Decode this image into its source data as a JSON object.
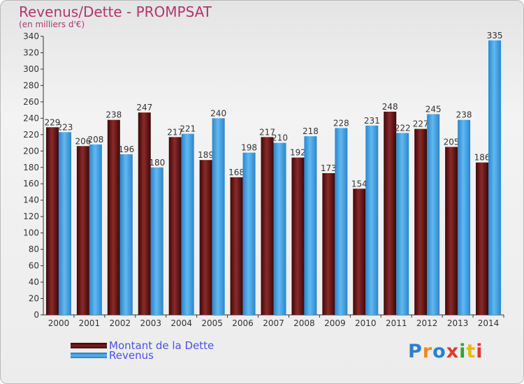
{
  "chart_data": {
    "type": "bar",
    "title": "Revenus/Dette - PROMPSAT",
    "subtitle": "(en milliers d'€)",
    "categories": [
      "2000",
      "2001",
      "2002",
      "2003",
      "2004",
      "2005",
      "2006",
      "2007",
      "2008",
      "2009",
      "2010",
      "2011",
      "2012",
      "2013",
      "2014"
    ],
    "series": [
      {
        "name": "Montant de la Dette",
        "color": "#6f1818",
        "values": [
          229,
          206,
          238,
          247,
          217,
          189,
          168,
          217,
          192,
          173,
          154,
          248,
          227,
          205,
          186
        ]
      },
      {
        "name": "Revenus",
        "color": "#4aa3e3",
        "values": [
          223,
          208,
          196,
          180,
          221,
          240,
          198,
          210,
          218,
          228,
          231,
          222,
          245,
          238,
          335
        ]
      }
    ],
    "ylim": [
      0,
      340
    ],
    "yticks": [
      0,
      20,
      40,
      60,
      80,
      100,
      120,
      140,
      160,
      180,
      200,
      220,
      240,
      260,
      280,
      300,
      320,
      340
    ],
    "grid": false,
    "legend_position": "bottom-left"
  },
  "logo": {
    "text": "Proxiti",
    "colors": [
      "#2a7fd4",
      "#f08a1c",
      "#2a7fd4",
      "#e0392b",
      "#36a23b",
      "#e6b81e",
      "#e0392b"
    ]
  }
}
